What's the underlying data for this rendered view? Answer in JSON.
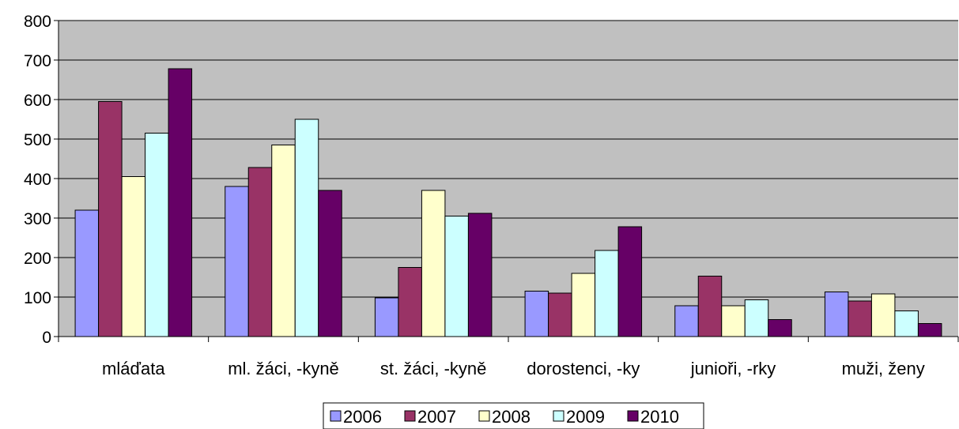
{
  "chart_data": {
    "type": "bar",
    "title": "",
    "xlabel": "",
    "ylabel": "",
    "ylim": [
      0,
      800
    ],
    "yticks": [
      0,
      100,
      200,
      300,
      400,
      500,
      600,
      700,
      800
    ],
    "grid": true,
    "legend_position": "bottom",
    "plot_background": "#c0c0c0",
    "categories": [
      "mláďata",
      "ml. žáci, -kyně",
      "st. žáci, -kyně",
      "dorostenci, -ky",
      "junioři, -rky",
      "muži, ženy"
    ],
    "series": [
      {
        "name": "2006",
        "color": "#9999ff",
        "values": [
          320,
          380,
          98,
          115,
          78,
          113
        ]
      },
      {
        "name": "2007",
        "color": "#993366",
        "values": [
          595,
          428,
          175,
          110,
          153,
          90
        ]
      },
      {
        "name": "2008",
        "color": "#ffffcc",
        "values": [
          405,
          485,
          370,
          160,
          78,
          108
        ]
      },
      {
        "name": "2009",
        "color": "#ccffff",
        "values": [
          515,
          550,
          305,
          218,
          93,
          65
        ]
      },
      {
        "name": "2010",
        "color": "#660066",
        "values": [
          678,
          370,
          312,
          278,
          43,
          33
        ]
      }
    ]
  }
}
